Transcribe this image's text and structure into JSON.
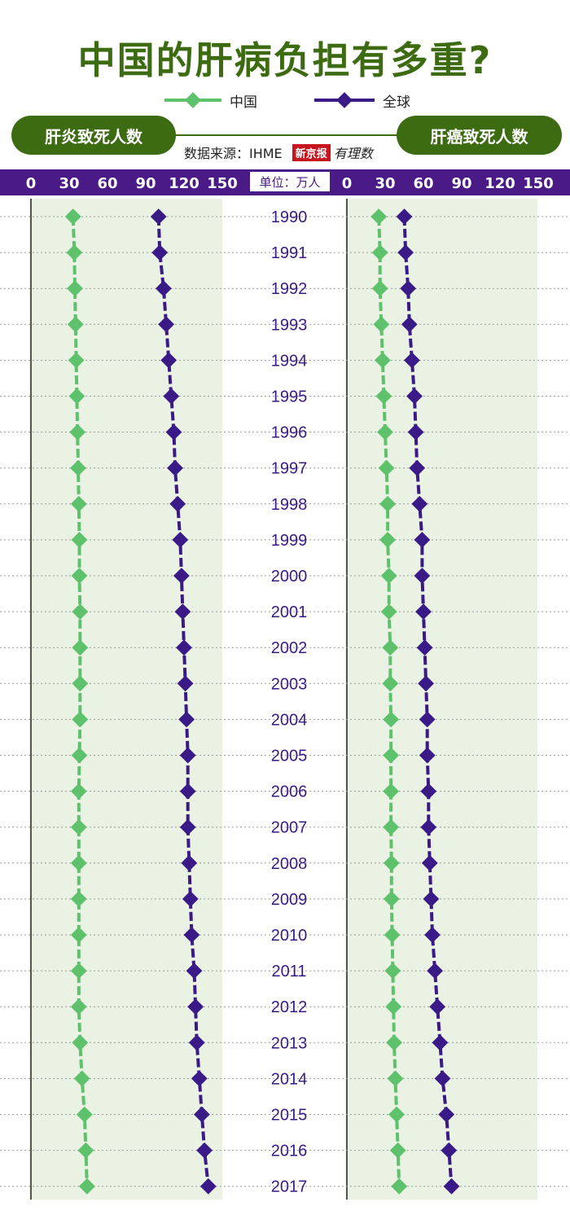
{
  "title": "中国的肝病负担有多重?",
  "legend": {
    "china": "中国",
    "global": "全球"
  },
  "source": {
    "label": "数据来源：IHME",
    "logo_text": "新京报",
    "logo_script": "有理数"
  },
  "unit_label": "单位：万人",
  "colors": {
    "china": "#5ec16b",
    "global": "#3a1a87",
    "header_green": "#3d6b12",
    "axis_bar": "#4a1a86",
    "panel_bg": "#eaf2e4",
    "year_text": "#3a1a87"
  },
  "chart_data": [
    {
      "type": "line",
      "title": "肝炎致死人数",
      "orientation": "horizontal",
      "y_categories": [
        "1990",
        "1991",
        "1992",
        "1993",
        "1994",
        "1995",
        "1996",
        "1997",
        "1998",
        "1999",
        "2000",
        "2001",
        "2002",
        "2003",
        "2004",
        "2005",
        "2006",
        "2007",
        "2008",
        "2009",
        "2010",
        "2011",
        "2012",
        "2013",
        "2014",
        "2015",
        "2016",
        "2017"
      ],
      "x_ticks": [
        0,
        30,
        60,
        90,
        120,
        150
      ],
      "xlim": [
        0,
        150
      ],
      "series": [
        {
          "name": "中国",
          "key": "china",
          "values": [
            33,
            34,
            34.5,
            35,
            35.5,
            36,
            36.5,
            37,
            37.5,
            38,
            38,
            38.5,
            38.5,
            38.5,
            38.5,
            38,
            37.5,
            37.5,
            37.5,
            37.5,
            37.5,
            37.5,
            37.5,
            38.5,
            40,
            42,
            43,
            44
          ]
        },
        {
          "name": "全球",
          "key": "global",
          "values": [
            100,
            101,
            104,
            106,
            108,
            110,
            112,
            113,
            115,
            117,
            118,
            119,
            120,
            121,
            122,
            123,
            123,
            123,
            124,
            125,
            126,
            128,
            129,
            130,
            132,
            134,
            136,
            139
          ]
        }
      ]
    },
    {
      "type": "line",
      "title": "肝癌致死人数",
      "orientation": "horizontal",
      "y_categories": [
        "1990",
        "1991",
        "1992",
        "1993",
        "1994",
        "1995",
        "1996",
        "1997",
        "1998",
        "1999",
        "2000",
        "2001",
        "2002",
        "2003",
        "2004",
        "2005",
        "2006",
        "2007",
        "2008",
        "2009",
        "2010",
        "2011",
        "2012",
        "2013",
        "2014",
        "2015",
        "2016",
        "2017"
      ],
      "x_ticks": [
        0,
        30,
        60,
        90,
        120,
        150
      ],
      "xlim": [
        0,
        150
      ],
      "series": [
        {
          "name": "中国",
          "key": "china",
          "values": [
            25,
            26,
            26,
            27,
            28,
            29,
            30,
            31,
            32,
            32,
            33,
            33,
            34,
            34,
            34.5,
            34.5,
            34.5,
            34.5,
            35,
            35,
            35.5,
            36,
            36.5,
            37,
            38,
            39,
            40,
            41
          ]
        },
        {
          "name": "全球",
          "key": "global",
          "values": [
            45,
            46,
            48,
            49,
            51,
            53,
            54,
            55,
            57,
            59,
            59,
            60,
            61,
            62,
            63,
            63,
            64,
            64,
            65,
            66,
            67,
            69,
            71,
            73,
            75,
            78,
            80,
            82
          ]
        }
      ]
    }
  ]
}
